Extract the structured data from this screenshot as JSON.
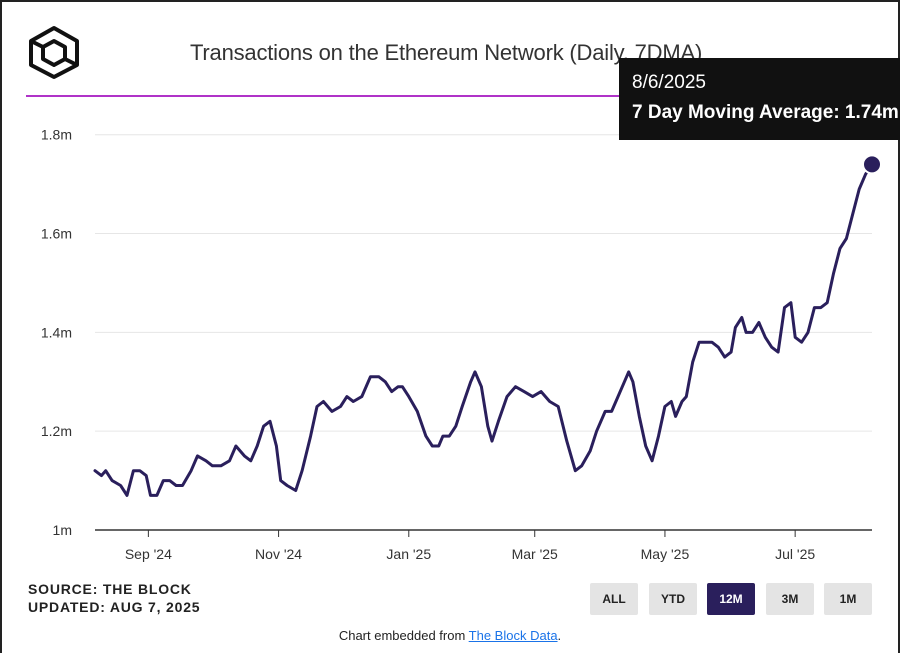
{
  "header": {
    "title": "Transactions on the Ethereum Network (Daily, 7DMA)"
  },
  "tooltip": {
    "date": "8/6/2025",
    "text": "7 Day Moving Average: 1.74m"
  },
  "footer": {
    "source": "SOURCE: THE BLOCK",
    "updated": "UPDATED: AUG 7, 2025",
    "embed_prefix": "Chart embedded from ",
    "embed_link": "The Block Data",
    "embed_suffix": "."
  },
  "range_buttons": [
    {
      "label": "ALL",
      "active": false
    },
    {
      "label": "YTD",
      "active": false
    },
    {
      "label": "12M",
      "active": true
    },
    {
      "label": "3M",
      "active": false
    },
    {
      "label": "1M",
      "active": false
    }
  ],
  "colors": {
    "line": "#2a1f5c",
    "title_rule": "#b033c8",
    "tooltip_bg": "#111111",
    "active_button": "#2a1f5c"
  },
  "chart_data": {
    "type": "line",
    "title": "Transactions on the Ethereum Network (Daily, 7DMA)",
    "xlabel": "",
    "ylabel": "",
    "x_range": [
      "2024-08-07",
      "2025-08-06"
    ],
    "ylim": [
      1.0,
      1.85
    ],
    "y_ticks": [
      {
        "value": 1.0,
        "label": "1m"
      },
      {
        "value": 1.2,
        "label": "1.2m"
      },
      {
        "value": 1.4,
        "label": "1.4m"
      },
      {
        "value": 1.6,
        "label": "1.6m"
      },
      {
        "value": 1.8,
        "label": "1.8m"
      }
    ],
    "x_ticks": [
      {
        "date": "2024-09-01",
        "label": "Sep '24"
      },
      {
        "date": "2024-11-01",
        "label": "Nov '24"
      },
      {
        "date": "2025-01-01",
        "label": "Jan '25"
      },
      {
        "date": "2025-03-01",
        "label": "Mar '25"
      },
      {
        "date": "2025-05-01",
        "label": "May '25"
      },
      {
        "date": "2025-07-01",
        "label": "Jul '25"
      }
    ],
    "grid": true,
    "series": [
      {
        "name": "7 Day Moving Average",
        "unit": "m",
        "points": [
          [
            "2024-08-07",
            1.12
          ],
          [
            "2024-08-10",
            1.11
          ],
          [
            "2024-08-12",
            1.12
          ],
          [
            "2024-08-15",
            1.1
          ],
          [
            "2024-08-19",
            1.09
          ],
          [
            "2024-08-22",
            1.07
          ],
          [
            "2024-08-25",
            1.12
          ],
          [
            "2024-08-28",
            1.12
          ],
          [
            "2024-08-31",
            1.11
          ],
          [
            "2024-09-02",
            1.07
          ],
          [
            "2024-09-05",
            1.07
          ],
          [
            "2024-09-08",
            1.1
          ],
          [
            "2024-09-11",
            1.1
          ],
          [
            "2024-09-14",
            1.09
          ],
          [
            "2024-09-17",
            1.09
          ],
          [
            "2024-09-21",
            1.12
          ],
          [
            "2024-09-24",
            1.15
          ],
          [
            "2024-09-28",
            1.14
          ],
          [
            "2024-10-01",
            1.13
          ],
          [
            "2024-10-05",
            1.13
          ],
          [
            "2024-10-09",
            1.14
          ],
          [
            "2024-10-12",
            1.17
          ],
          [
            "2024-10-16",
            1.15
          ],
          [
            "2024-10-19",
            1.14
          ],
          [
            "2024-10-22",
            1.17
          ],
          [
            "2024-10-25",
            1.21
          ],
          [
            "2024-10-28",
            1.22
          ],
          [
            "2024-10-31",
            1.17
          ],
          [
            "2024-11-02",
            1.1
          ],
          [
            "2024-11-05",
            1.09
          ],
          [
            "2024-11-09",
            1.08
          ],
          [
            "2024-11-12",
            1.12
          ],
          [
            "2024-11-16",
            1.19
          ],
          [
            "2024-11-19",
            1.25
          ],
          [
            "2024-11-22",
            1.26
          ],
          [
            "2024-11-26",
            1.24
          ],
          [
            "2024-11-30",
            1.25
          ],
          [
            "2024-12-03",
            1.27
          ],
          [
            "2024-12-06",
            1.26
          ],
          [
            "2024-12-10",
            1.27
          ],
          [
            "2024-12-14",
            1.31
          ],
          [
            "2024-12-18",
            1.31
          ],
          [
            "2024-12-21",
            1.3
          ],
          [
            "2024-12-24",
            1.28
          ],
          [
            "2024-12-27",
            1.29
          ],
          [
            "2024-12-29",
            1.29
          ],
          [
            "2025-01-01",
            1.27
          ],
          [
            "2025-01-05",
            1.24
          ],
          [
            "2025-01-09",
            1.19
          ],
          [
            "2025-01-12",
            1.17
          ],
          [
            "2025-01-15",
            1.17
          ],
          [
            "2025-01-17",
            1.19
          ],
          [
            "2025-01-20",
            1.19
          ],
          [
            "2025-01-23",
            1.21
          ],
          [
            "2025-01-26",
            1.25
          ],
          [
            "2025-01-30",
            1.3
          ],
          [
            "2025-02-01",
            1.32
          ],
          [
            "2025-02-04",
            1.29
          ],
          [
            "2025-02-07",
            1.21
          ],
          [
            "2025-02-09",
            1.18
          ],
          [
            "2025-02-12",
            1.22
          ],
          [
            "2025-02-16",
            1.27
          ],
          [
            "2025-02-20",
            1.29
          ],
          [
            "2025-02-24",
            1.28
          ],
          [
            "2025-02-28",
            1.27
          ],
          [
            "2025-03-04",
            1.28
          ],
          [
            "2025-03-08",
            1.26
          ],
          [
            "2025-03-12",
            1.25
          ],
          [
            "2025-03-16",
            1.18
          ],
          [
            "2025-03-20",
            1.12
          ],
          [
            "2025-03-23",
            1.13
          ],
          [
            "2025-03-27",
            1.16
          ],
          [
            "2025-03-30",
            1.2
          ],
          [
            "2025-04-03",
            1.24
          ],
          [
            "2025-04-06",
            1.24
          ],
          [
            "2025-04-09",
            1.27
          ],
          [
            "2025-04-12",
            1.3
          ],
          [
            "2025-04-14",
            1.32
          ],
          [
            "2025-04-16",
            1.3
          ],
          [
            "2025-04-19",
            1.23
          ],
          [
            "2025-04-22",
            1.17
          ],
          [
            "2025-04-25",
            1.14
          ],
          [
            "2025-04-28",
            1.19
          ],
          [
            "2025-05-01",
            1.25
          ],
          [
            "2025-05-04",
            1.26
          ],
          [
            "2025-05-06",
            1.23
          ],
          [
            "2025-05-09",
            1.26
          ],
          [
            "2025-05-11",
            1.27
          ],
          [
            "2025-05-14",
            1.34
          ],
          [
            "2025-05-17",
            1.38
          ],
          [
            "2025-05-20",
            1.38
          ],
          [
            "2025-05-23",
            1.38
          ],
          [
            "2025-05-26",
            1.37
          ],
          [
            "2025-05-29",
            1.35
          ],
          [
            "2025-06-01",
            1.36
          ],
          [
            "2025-06-03",
            1.41
          ],
          [
            "2025-06-06",
            1.43
          ],
          [
            "2025-06-08",
            1.4
          ],
          [
            "2025-06-11",
            1.4
          ],
          [
            "2025-06-14",
            1.42
          ],
          [
            "2025-06-17",
            1.39
          ],
          [
            "2025-06-20",
            1.37
          ],
          [
            "2025-06-23",
            1.36
          ],
          [
            "2025-06-26",
            1.45
          ],
          [
            "2025-06-29",
            1.46
          ],
          [
            "2025-07-01",
            1.39
          ],
          [
            "2025-07-04",
            1.38
          ],
          [
            "2025-07-07",
            1.4
          ],
          [
            "2025-07-10",
            1.45
          ],
          [
            "2025-07-13",
            1.45
          ],
          [
            "2025-07-16",
            1.46
          ],
          [
            "2025-07-19",
            1.52
          ],
          [
            "2025-07-22",
            1.57
          ],
          [
            "2025-07-25",
            1.59
          ],
          [
            "2025-07-28",
            1.64
          ],
          [
            "2025-07-31",
            1.69
          ],
          [
            "2025-08-03",
            1.72
          ],
          [
            "2025-08-06",
            1.74
          ]
        ]
      }
    ],
    "highlight": {
      "date": "2025-08-06",
      "value": 1.74
    }
  }
}
